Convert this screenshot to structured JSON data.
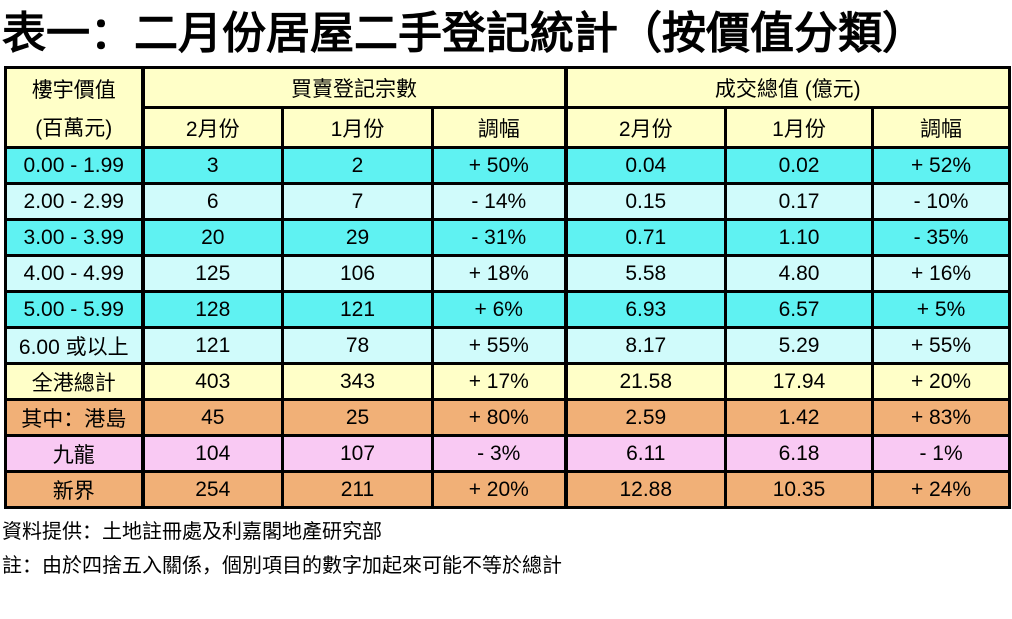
{
  "page": {
    "title": "表一：二月份居屋二手登記統計（按價值分類）"
  },
  "table": {
    "header": {
      "col1_line1": "樓宇價值",
      "col1_line2": "(百萬元)",
      "group1": "買賣登記宗數",
      "group2": "成交總值 (億元)",
      "sub": [
        "2月份",
        "1月份",
        "調幅",
        "2月份",
        "1月份",
        "調幅"
      ]
    },
    "rows": [
      {
        "label": "0.00 - 1.99",
        "values": [
          "3",
          "2",
          "+ 50%",
          "0.04",
          "0.02",
          "+ 52%"
        ]
      },
      {
        "label": "2.00 - 2.99",
        "values": [
          "6",
          "7",
          "- 14%",
          "0.15",
          "0.17",
          "- 10%"
        ]
      },
      {
        "label": "3.00 - 3.99",
        "values": [
          "20",
          "29",
          "- 31%",
          "0.71",
          "1.10",
          "- 35%"
        ]
      },
      {
        "label": "4.00 - 4.99",
        "values": [
          "125",
          "106",
          "+ 18%",
          "5.58",
          "4.80",
          "+ 16%"
        ]
      },
      {
        "label": "5.00 - 5.99",
        "values": [
          "128",
          "121",
          "+ 6%",
          "6.93",
          "6.57",
          "+ 5%"
        ]
      },
      {
        "label": "6.00 或以上",
        "values": [
          "121",
          "78",
          "+ 55%",
          "8.17",
          "5.29",
          "+ 55%"
        ]
      },
      {
        "label": "全港總計",
        "values": [
          "403",
          "343",
          "+ 17%",
          "21.58",
          "17.94",
          "+ 20%"
        ]
      },
      {
        "label": "其中：港島",
        "values": [
          "45",
          "25",
          "+ 80%",
          "2.59",
          "1.42",
          "+ 83%"
        ]
      },
      {
        "label": "九龍",
        "values": [
          "104",
          "107",
          "- 3%",
          "6.11",
          "6.18",
          "- 1%"
        ]
      },
      {
        "label": "新界",
        "values": [
          "254",
          "211",
          "+ 20%",
          "12.88",
          "10.35",
          "+ 24%"
        ]
      }
    ],
    "row_styles": [
      "cyan-dark",
      "cyan-light",
      "cyan-dark",
      "cyan-light",
      "cyan-dark",
      "cyan-light",
      "yellow",
      "orange",
      "pink",
      "orange"
    ]
  },
  "footer": {
    "source": "資料提供：土地註冊處及利嘉閣地產研究部",
    "note": "註：由於四捨五入關係，個別項目的數字加起來可能不等於總計"
  },
  "colors": {
    "header_yellow": "#FFFFC8",
    "cyan_dark": "#5FF2F2",
    "cyan_light": "#D0FBFB",
    "total_yellow": "#FFFFC8",
    "orange": "#F1B077",
    "pink": "#F9C9F3",
    "border": "#000000",
    "text": "#000000"
  }
}
